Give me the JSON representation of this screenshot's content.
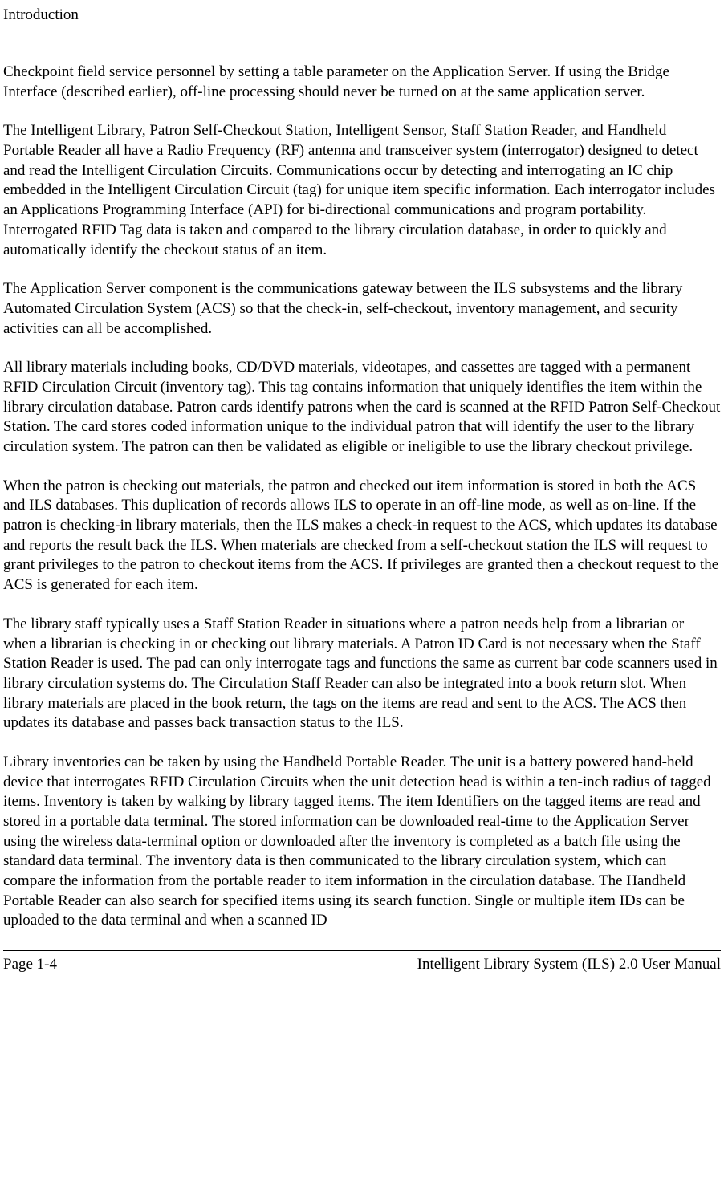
{
  "header": {
    "section_title": "Introduction"
  },
  "body": {
    "paragraphs": [
      "Checkpoint field service personnel by setting a table parameter on the Application Server. If using the Bridge Interface (described earlier), off-line processing should never be turned on at the same application server.",
      "The Intelligent Library, Patron Self-Checkout Station, Intelligent Sensor, Staff Station Reader, and Handheld Portable Reader all have a Radio Frequency (RF) antenna and transceiver system (interrogator) designed to detect and read the Intelligent Circulation Circuits. Communications occur by detecting and interrogating an IC chip embedded in the Intelligent Circulation Circuit (tag) for unique item specific information. Each interrogator includes an Applications Programming Interface (API) for bi-directional communications and program portability. Interrogated RFID Tag data is taken and compared to the library circulation database, in order to quickly and automatically identify the checkout status of an item.",
      "The Application Server component is the communications gateway between the ILS subsystems and the library Automated Circulation System (ACS) so that the check-in, self-checkout, inventory management, and security activities can all be accomplished.",
      "All library materials including books, CD/DVD materials, videotapes, and cassettes are tagged with a permanent RFID Circulation Circuit (inventory tag). This tag contains information that uniquely identifies the item within the library circulation database. Patron cards identify patrons when the card is scanned at the RFID Patron Self-Checkout Station. The card stores coded information unique to the individual patron that will identify the user to the library circulation system. The patron can then be validated as eligible or ineligible to use the library checkout privilege.",
      "When the patron is checking out materials, the patron and checked out item information is stored in both the ACS and ILS databases. This duplication of records allows ILS to operate in an off-line mode, as well as on-line. If the patron is checking-in library materials, then the ILS makes a check-in request to the ACS, which updates its database and reports the result back the ILS. When materials are checked from a self-checkout station the ILS will request to grant privileges to the patron to checkout items from the ACS. If privileges are granted then a checkout request to the ACS is generated for each item.",
      "The library staff typically uses a Staff Station Reader in situations where a patron needs help from a librarian or when a librarian is checking in or checking out library materials. A Patron ID Card is not necessary when the Staff Station Reader is used. The pad can only interrogate tags and functions the same as current bar code scanners used in library circulation systems do. The Circulation Staff Reader can also be integrated into a book return slot. When library materials are placed in the book return, the tags on the items are read and sent to the ACS. The ACS then updates its database and passes back transaction status to the ILS.",
      "Library inventories can be taken by using the Handheld Portable Reader. The unit is a battery powered hand-held device that interrogates RFID Circulation Circuits when the unit detection head is within a ten-inch radius of tagged items. Inventory is taken by walking by library tagged items. The item Identifiers on the tagged items are read and stored in a portable data terminal. The stored information can be downloaded real-time to the Application Server using the wireless data-terminal option or downloaded after the inventory is completed as a batch file using the standard data terminal. The inventory data is then communicated to the library circulation system, which can compare the information from the portable reader to item information in the circulation database. The Handheld Portable Reader can also search for specified items using its search function. Single or multiple item IDs can be uploaded to the data terminal and when a scanned ID"
    ]
  },
  "footer": {
    "page_number": "Page 1-4",
    "doc_title": "Intelligent Library System (ILS) 2.0 User Manual"
  }
}
